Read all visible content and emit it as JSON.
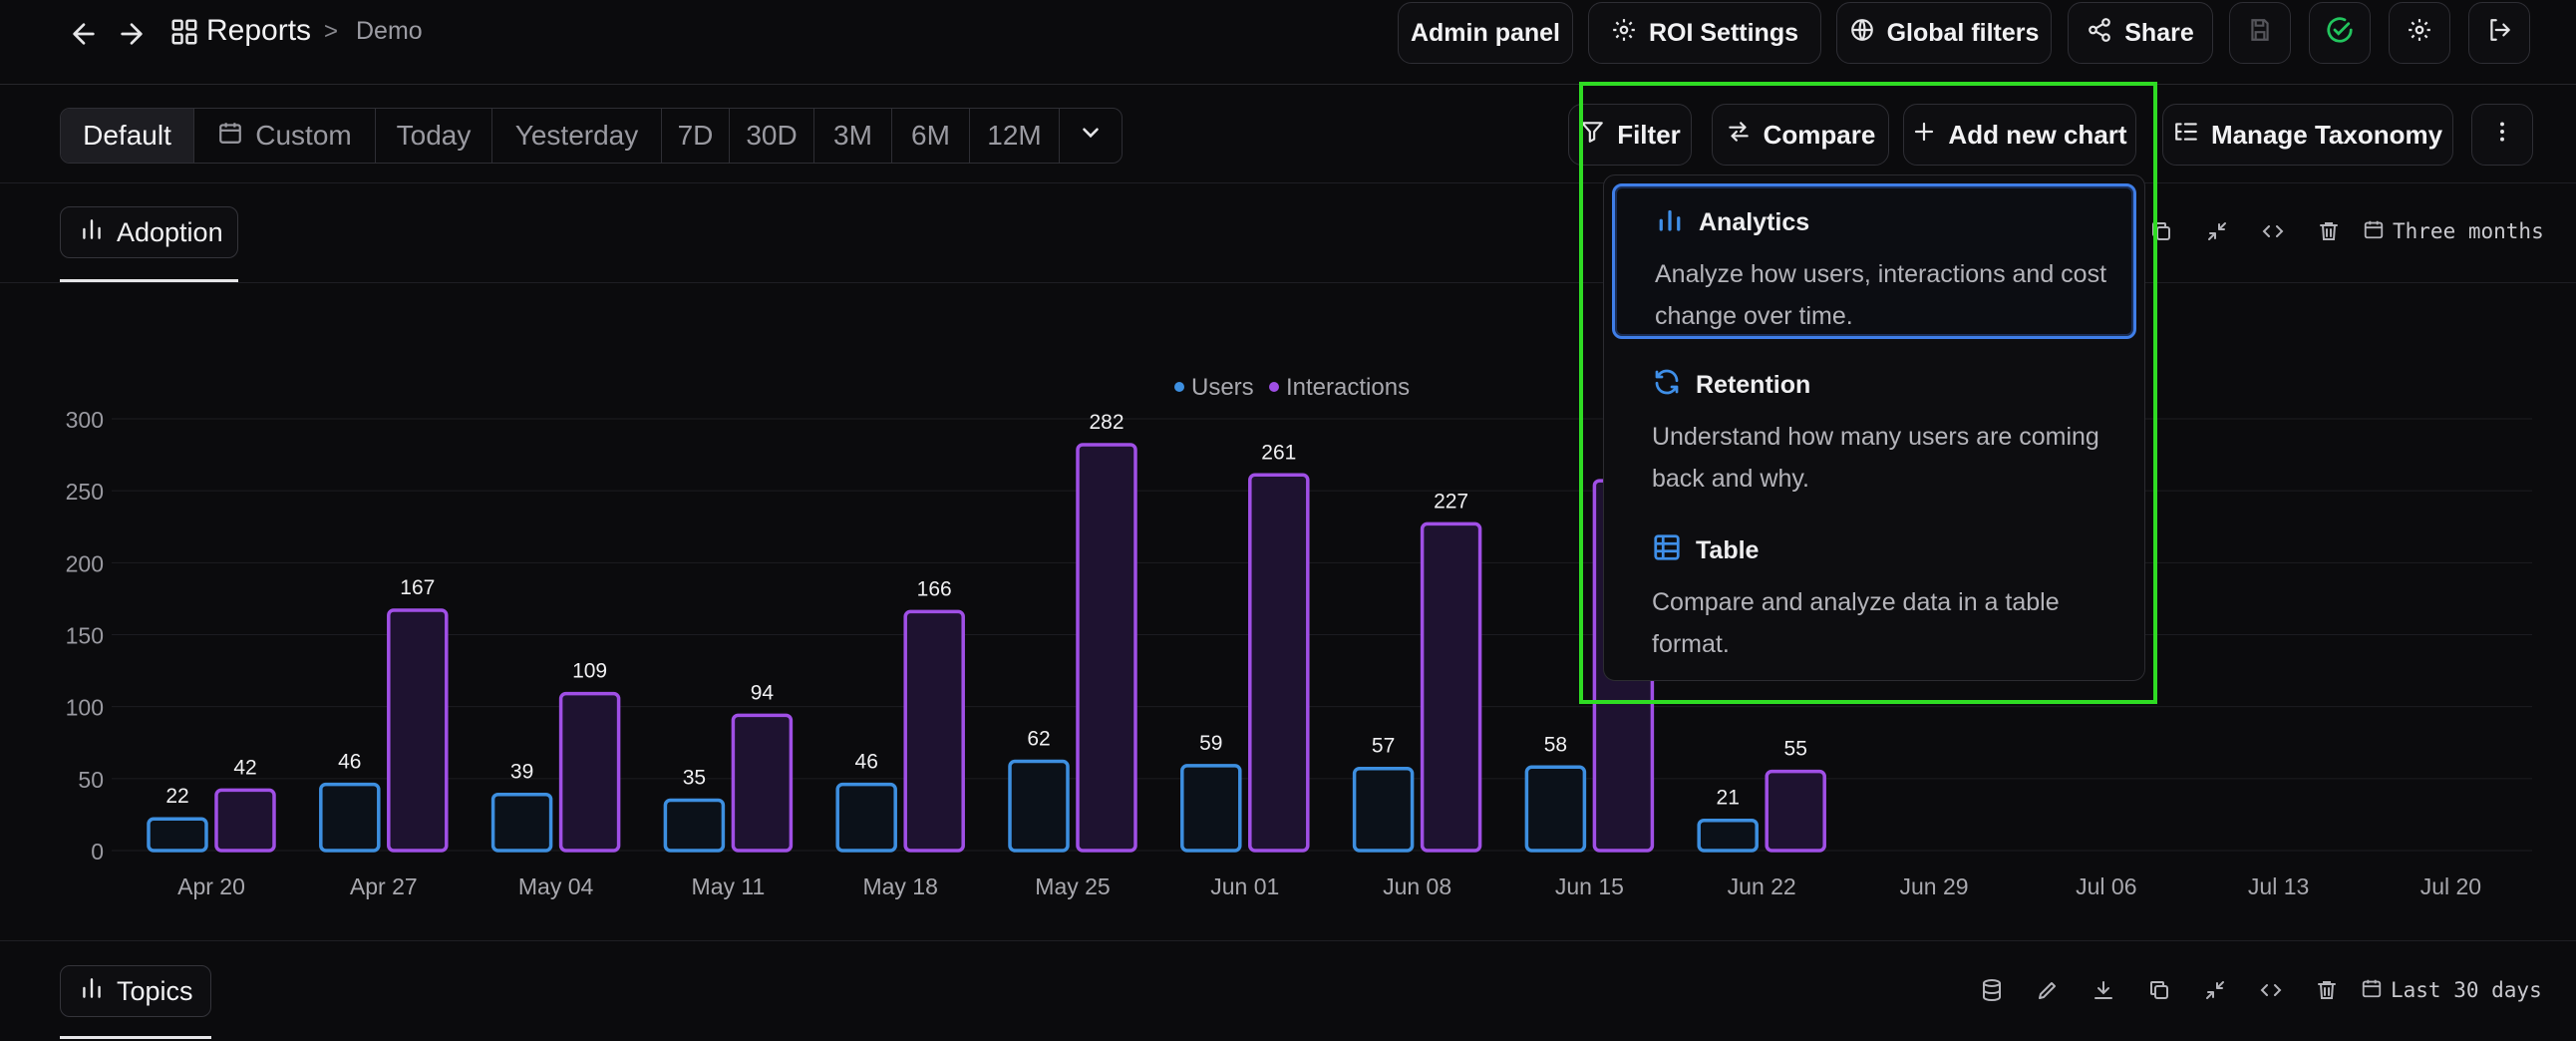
{
  "header": {
    "breadcrumb_title": "Reports",
    "breadcrumb_sep": ">",
    "breadcrumb_sub": "Demo",
    "admin_panel": "Admin panel",
    "roi_settings": "ROI Settings",
    "global_filters": "Global filters",
    "share": "Share"
  },
  "range": {
    "options": [
      "Default",
      "Custom",
      "Today",
      "Yesterday",
      "7D",
      "30D",
      "3M",
      "6M",
      "12M"
    ],
    "selected": "Default"
  },
  "actions": {
    "filter": "Filter",
    "compare": "Compare",
    "add_chart": "Add new chart",
    "manage_taxonomy": "Manage Taxonomy"
  },
  "adoption": {
    "tab_label": "Adoption",
    "range_label": "Three months"
  },
  "topics": {
    "tab_label": "Topics",
    "range_label": "Last 30 days"
  },
  "dropdown": {
    "items": [
      {
        "title": "Analytics",
        "desc": "Analyze how users, interactions and cost change over time.",
        "icon": "bar-chart-icon",
        "active": true
      },
      {
        "title": "Retention",
        "desc": "Understand how many users are coming back and why.",
        "icon": "refresh-icon",
        "active": false
      },
      {
        "title": "Table",
        "desc": "Compare and analyze data in a table format.",
        "icon": "table-icon",
        "active": false
      }
    ]
  },
  "colors": {
    "users": "#3d8fe0",
    "interactions": "#a04fe6",
    "active_outline": "#3f7ee8",
    "highlight": "#2fdc23",
    "success": "#22c55e"
  },
  "chart_data": {
    "type": "bar",
    "categories": [
      "Apr 20",
      "Apr 27",
      "May 04",
      "May 11",
      "May 18",
      "May 25",
      "Jun 01",
      "Jun 08",
      "Jun 15",
      "Jun 22",
      "Jun 29",
      "Jul 06",
      "Jul 13",
      "Jul 20"
    ],
    "series": [
      {
        "name": "Users",
        "values": [
          22,
          46,
          39,
          35,
          46,
          62,
          59,
          57,
          58,
          21,
          null,
          null,
          null,
          null
        ]
      },
      {
        "name": "Interactions",
        "values": [
          42,
          167,
          109,
          94,
          166,
          282,
          261,
          227,
          257,
          55,
          null,
          null,
          null,
          null
        ]
      }
    ],
    "yticks": [
      0,
      50,
      100,
      150,
      200,
      250,
      300
    ],
    "ylim": [
      0,
      300
    ],
    "grid": true,
    "legend": "top-center"
  }
}
